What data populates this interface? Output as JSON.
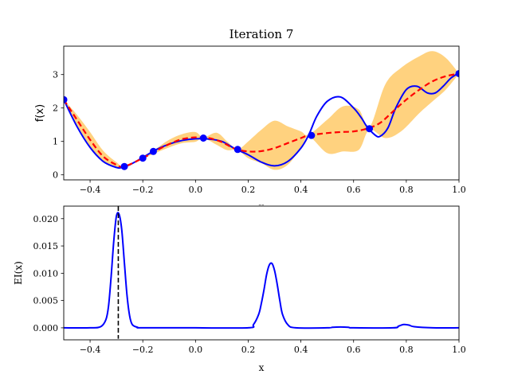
{
  "figure": {
    "title": "Iteration 7"
  },
  "chart_data": [
    {
      "type": "line",
      "panel": "top",
      "title": "Iteration 7",
      "xlabel": "x",
      "ylabel": "f(x)",
      "xlim": [
        -0.5,
        1.0
      ],
      "ylim": [
        -0.15,
        3.85
      ],
      "xticks": [
        -0.4,
        -0.2,
        0.0,
        0.2,
        0.4,
        0.6,
        0.8,
        1.0
      ],
      "xtick_labels": [
        "−0.4",
        "−0.2",
        "0.0",
        "0.2",
        "0.4",
        "0.6",
        "0.8",
        "1.0"
      ],
      "yticks": [
        0,
        1,
        2,
        3
      ],
      "ytick_labels": [
        "0",
        "1",
        "2",
        "3"
      ],
      "grid": false,
      "colors": {
        "true_function": "#0000ff",
        "mean": "#ff0000",
        "band": "#ffa500",
        "observations": "#0000ff"
      },
      "series": [
        {
          "role": "true_function",
          "x": [
            -0.5,
            -0.45,
            -0.4,
            -0.35,
            -0.3,
            -0.28,
            -0.25,
            -0.2,
            -0.15,
            -0.1,
            -0.05,
            0.0,
            0.05,
            0.1,
            0.15,
            0.2,
            0.25,
            0.3,
            0.35,
            0.4,
            0.43,
            0.46,
            0.5,
            0.55,
            0.6,
            0.63,
            0.65,
            0.68,
            0.7,
            0.73,
            0.76,
            0.8,
            0.84,
            0.88,
            0.91,
            0.94,
            0.97,
            1.0
          ],
          "y": [
            2.25,
            1.45,
            0.82,
            0.4,
            0.22,
            0.22,
            0.3,
            0.52,
            0.75,
            0.92,
            1.03,
            1.08,
            1.07,
            1.0,
            0.78,
            0.6,
            0.38,
            0.27,
            0.4,
            0.8,
            1.2,
            1.75,
            2.2,
            2.33,
            2.0,
            1.7,
            1.45,
            1.2,
            1.15,
            1.4,
            2.0,
            2.55,
            2.65,
            2.45,
            2.45,
            2.65,
            2.9,
            3.05
          ]
        },
        {
          "role": "mean",
          "x": [
            -0.5,
            -0.45,
            -0.4,
            -0.35,
            -0.3,
            -0.27,
            -0.2,
            -0.15,
            -0.1,
            -0.05,
            0.0,
            0.05,
            0.1,
            0.15,
            0.2,
            0.25,
            0.3,
            0.35,
            0.4,
            0.43,
            0.5,
            0.55,
            0.6,
            0.65,
            0.7,
            0.75,
            0.8,
            0.85,
            0.9,
            0.95,
            1.0
          ],
          "y": [
            2.25,
            1.65,
            1.05,
            0.55,
            0.3,
            0.25,
            0.5,
            0.72,
            0.92,
            1.07,
            1.12,
            1.1,
            0.98,
            0.78,
            0.7,
            0.71,
            0.8,
            0.95,
            1.1,
            1.18,
            1.25,
            1.28,
            1.3,
            1.38,
            1.55,
            1.9,
            2.25,
            2.55,
            2.8,
            2.95,
            3.03
          ]
        }
      ],
      "confidence_band": {
        "x": [
          -0.5,
          -0.45,
          -0.4,
          -0.35,
          -0.3,
          -0.27,
          -0.2,
          -0.15,
          -0.1,
          -0.05,
          0.0,
          0.03,
          0.08,
          0.12,
          0.16,
          0.2,
          0.25,
          0.3,
          0.35,
          0.4,
          0.43,
          0.5,
          0.56,
          0.62,
          0.66,
          0.72,
          0.78,
          0.85,
          0.9,
          0.95,
          1.0
        ],
        "lower": [
          2.25,
          1.5,
          0.82,
          0.38,
          0.22,
          0.25,
          0.49,
          0.66,
          0.82,
          0.95,
          0.99,
          1.1,
          0.9,
          0.74,
          0.75,
          0.5,
          0.35,
          0.15,
          0.3,
          0.8,
          1.15,
          0.65,
          0.7,
          0.75,
          1.35,
          1.1,
          1.3,
          1.85,
          2.2,
          2.55,
          3.03
        ],
        "upper": [
          2.25,
          1.8,
          1.28,
          0.72,
          0.38,
          0.25,
          0.51,
          0.78,
          1.05,
          1.22,
          1.28,
          1.12,
          1.26,
          1.0,
          0.77,
          1.0,
          1.35,
          1.62,
          1.45,
          1.3,
          1.2,
          1.65,
          2.05,
          1.95,
          1.42,
          2.7,
          3.2,
          3.55,
          3.7,
          3.5,
          3.03
        ]
      },
      "observations": {
        "x": [
          -0.5,
          -0.27,
          -0.2,
          -0.16,
          0.03,
          0.16,
          0.44,
          0.66,
          1.0
        ],
        "y": [
          2.25,
          0.25,
          0.5,
          0.7,
          1.1,
          0.76,
          1.18,
          1.38,
          3.03
        ]
      }
    },
    {
      "type": "line",
      "panel": "bottom",
      "xlabel": "x",
      "ylabel": "EI(x)",
      "xlim": [
        -0.5,
        1.0
      ],
      "ylim": [
        -0.0022,
        0.0223
      ],
      "xticks": [
        -0.4,
        -0.2,
        0.0,
        0.2,
        0.4,
        0.6,
        0.8,
        1.0
      ],
      "xtick_labels": [
        "−0.4",
        "−0.2",
        "0.0",
        "0.2",
        "0.4",
        "0.6",
        "0.8",
        "1.0"
      ],
      "yticks": [
        0.0,
        0.005,
        0.01,
        0.015,
        0.02
      ],
      "ytick_labels": [
        "0.000",
        "0.005",
        "0.010",
        "0.015",
        "0.020"
      ],
      "grid": false,
      "colors": {
        "ei": "#0000ff",
        "next_point": "#000000"
      },
      "series": [
        {
          "role": "ei",
          "x": [
            -0.5,
            -0.4,
            -0.36,
            -0.34,
            -0.33,
            -0.32,
            -0.31,
            -0.3,
            -0.29,
            -0.28,
            -0.27,
            -0.26,
            -0.25,
            -0.24,
            -0.22,
            -0.2,
            0.0,
            0.2,
            0.22,
            0.24,
            0.25,
            0.26,
            0.27,
            0.28,
            0.29,
            0.3,
            0.31,
            0.32,
            0.33,
            0.35,
            0.38,
            0.5,
            0.52,
            0.55,
            0.58,
            0.6,
            0.75,
            0.77,
            0.79,
            0.81,
            0.83,
            0.9,
            1.0
          ],
          "y": [
            0,
            0,
            0.0002,
            0.0015,
            0.004,
            0.0095,
            0.016,
            0.0205,
            0.0208,
            0.018,
            0.012,
            0.006,
            0.0022,
            0.0006,
            0.0001,
            0,
            0,
            0,
            0.0006,
            0.0025,
            0.0045,
            0.007,
            0.0098,
            0.0115,
            0.0118,
            0.0105,
            0.008,
            0.005,
            0.0025,
            0.0006,
            0,
            0,
            0.0001,
            0.00015,
            0.0001,
            0,
            0,
            0.0003,
            0.0006,
            0.0005,
            0.0002,
            0,
            0
          ]
        }
      ],
      "next_point_x": -0.293
    }
  ]
}
